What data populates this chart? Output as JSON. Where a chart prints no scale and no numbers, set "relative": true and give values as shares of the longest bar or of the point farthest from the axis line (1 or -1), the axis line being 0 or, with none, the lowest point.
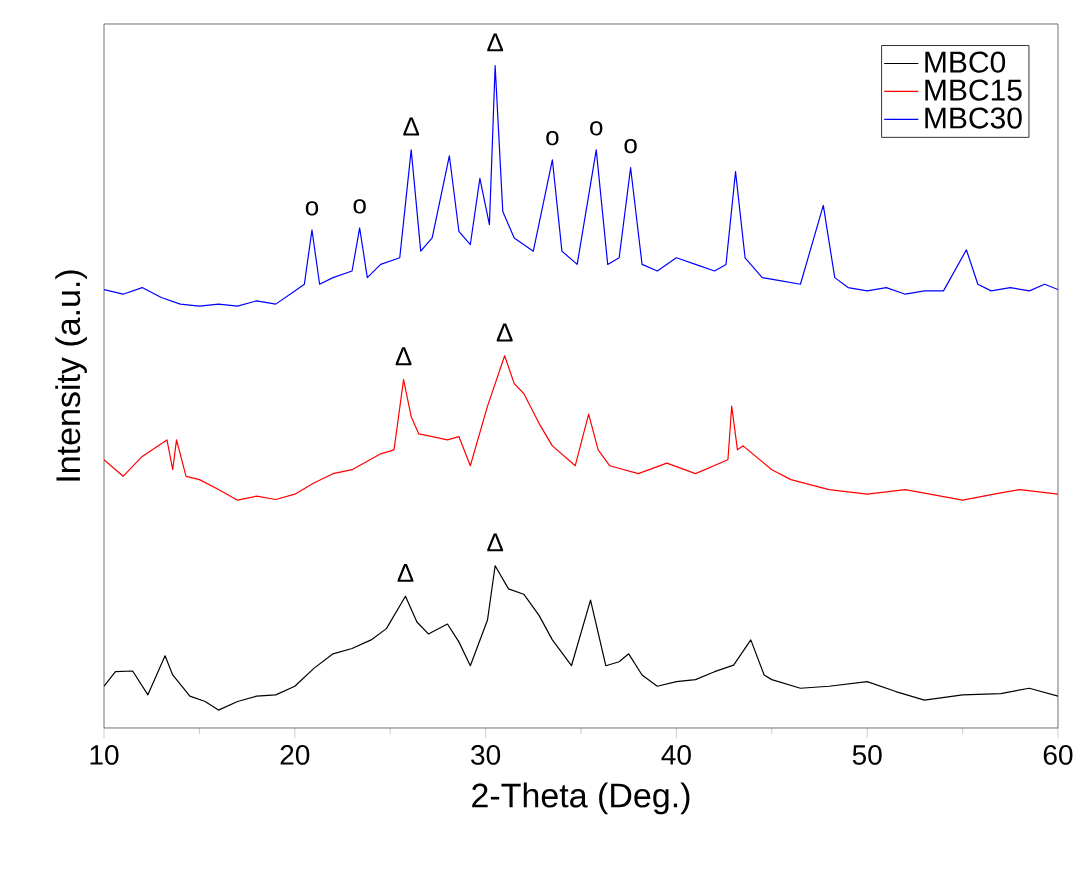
{
  "chart_data": {
    "type": "line",
    "relative": true,
    "xlabel": "2-Theta (Deg.)",
    "ylabel": "Intensity (a.u.)",
    "xlim": [
      10,
      60
    ],
    "xticks": [
      10,
      20,
      30,
      40,
      50,
      60
    ],
    "legend": "top right",
    "marker": "none",
    "line_style": "solid",
    "grid": false,
    "series": [
      {
        "name": "MBC0",
        "color": "#000000",
        "x": [
          10,
          10.6,
          11.5,
          12.3,
          13.2,
          13.6,
          14.5,
          15.3,
          16,
          17,
          18,
          19,
          20,
          21,
          22,
          23,
          24,
          24.8,
          25.8,
          26.4,
          27,
          28,
          28.6,
          29.2,
          30.1,
          30.5,
          31.2,
          32,
          32.8,
          33.5,
          34.5,
          35.5,
          36.3,
          37,
          37.5,
          38.2,
          39,
          40,
          41,
          42,
          43,
          43.9,
          44.6,
          45,
          46.5,
          48,
          50,
          51.5,
          53,
          55,
          57,
          58.5,
          60
        ],
        "values": [
          0.063,
          0.085,
          0.086,
          0.05,
          0.109,
          0.08,
          0.048,
          0.04,
          0.027,
          0.04,
          0.048,
          0.05,
          0.063,
          0.09,
          0.112,
          0.12,
          0.133,
          0.15,
          0.199,
          0.16,
          0.142,
          0.157,
          0.13,
          0.094,
          0.163,
          0.245,
          0.21,
          0.202,
          0.17,
          0.133,
          0.094,
          0.193,
          0.094,
          0.1,
          0.112,
          0.08,
          0.063,
          0.07,
          0.073,
          0.085,
          0.095,
          0.133,
          0.08,
          0.073,
          0.06,
          0.063,
          0.07,
          0.055,
          0.042,
          0.05,
          0.052,
          0.06,
          0.048
        ]
      },
      {
        "name": "MBC15",
        "color": "#ff0000",
        "x": [
          10,
          11,
          12,
          13.3,
          13.6,
          13.8,
          14.3,
          15,
          16,
          17,
          18,
          19,
          20,
          21,
          22,
          23,
          24.5,
          25.2,
          25.7,
          26.1,
          26.5,
          27.2,
          28,
          28.6,
          29.2,
          30.1,
          31,
          31.5,
          32,
          32.8,
          33.5,
          34.7,
          35.4,
          35.9,
          36.5,
          38,
          39.5,
          41,
          42.7,
          42.9,
          43.2,
          43.5,
          45,
          46,
          48,
          50,
          52,
          55,
          57,
          58,
          60
        ],
        "values": [
          0.405,
          0.38,
          0.41,
          0.435,
          0.39,
          0.435,
          0.38,
          0.375,
          0.36,
          0.344,
          0.35,
          0.345,
          0.353,
          0.37,
          0.384,
          0.39,
          0.414,
          0.42,
          0.526,
          0.47,
          0.444,
          0.44,
          0.435,
          0.44,
          0.396,
          0.486,
          0.562,
          0.52,
          0.505,
          0.46,
          0.426,
          0.396,
          0.474,
          0.42,
          0.396,
          0.384,
          0.4,
          0.384,
          0.405,
          0.486,
          0.42,
          0.426,
          0.39,
          0.375,
          0.36,
          0.353,
          0.36,
          0.344,
          0.355,
          0.36,
          0.353
        ]
      },
      {
        "name": "MBC30",
        "color": "#0000ff",
        "x": [
          10,
          11,
          12,
          13,
          14,
          15,
          16,
          17,
          18,
          19,
          20,
          20.5,
          20.9,
          21.3,
          22,
          23,
          23.4,
          23.8,
          24.5,
          25.5,
          26.1,
          26.6,
          27.2,
          28.1,
          28.6,
          29.2,
          29.7,
          30.2,
          30.5,
          30.9,
          31.5,
          32.5,
          33.5,
          34,
          34.8,
          35.8,
          36.4,
          37,
          37.6,
          38.2,
          39,
          40,
          41,
          42,
          42.6,
          43.1,
          43.6,
          44.5,
          45.5,
          46.5,
          47.7,
          48.3,
          49,
          50,
          51,
          52,
          53,
          54,
          55.2,
          55.8,
          56.5,
          57.5,
          58.5,
          59.3,
          60
        ],
        "values": [
          0.662,
          0.655,
          0.665,
          0.65,
          0.64,
          0.637,
          0.64,
          0.637,
          0.645,
          0.64,
          0.66,
          0.67,
          0.752,
          0.67,
          0.68,
          0.69,
          0.755,
          0.68,
          0.7,
          0.71,
          0.873,
          0.72,
          0.74,
          0.864,
          0.75,
          0.73,
          0.83,
          0.76,
          1,
          0.78,
          0.74,
          0.72,
          0.858,
          0.72,
          0.7,
          0.873,
          0.7,
          0.71,
          0.846,
          0.7,
          0.69,
          0.71,
          0.7,
          0.69,
          0.7,
          0.84,
          0.71,
          0.68,
          0.675,
          0.67,
          0.789,
          0.68,
          0.665,
          0.66,
          0.665,
          0.655,
          0.66,
          0.66,
          0.722,
          0.67,
          0.66,
          0.665,
          0.66,
          0.67,
          0.662
        ]
      }
    ],
    "annotations": [
      {
        "text": "Δ",
        "x": 25.8,
        "y": 0.199
      },
      {
        "text": "Δ",
        "x": 30.5,
        "y": 0.245
      },
      {
        "text": "Δ",
        "x": 25.7,
        "y": 0.526
      },
      {
        "text": "Δ",
        "x": 31,
        "y": 0.562
      },
      {
        "text": "o",
        "x": 20.9,
        "y": 0.752
      },
      {
        "text": "o",
        "x": 23.4,
        "y": 0.755
      },
      {
        "text": "Δ",
        "x": 26.1,
        "y": 0.873
      },
      {
        "text": "Δ",
        "x": 30.5,
        "y": 1
      },
      {
        "text": "o",
        "x": 33.5,
        "y": 0.858
      },
      {
        "text": "o",
        "x": 35.8,
        "y": 0.873
      },
      {
        "text": "o",
        "x": 37.6,
        "y": 0.846
      }
    ]
  }
}
